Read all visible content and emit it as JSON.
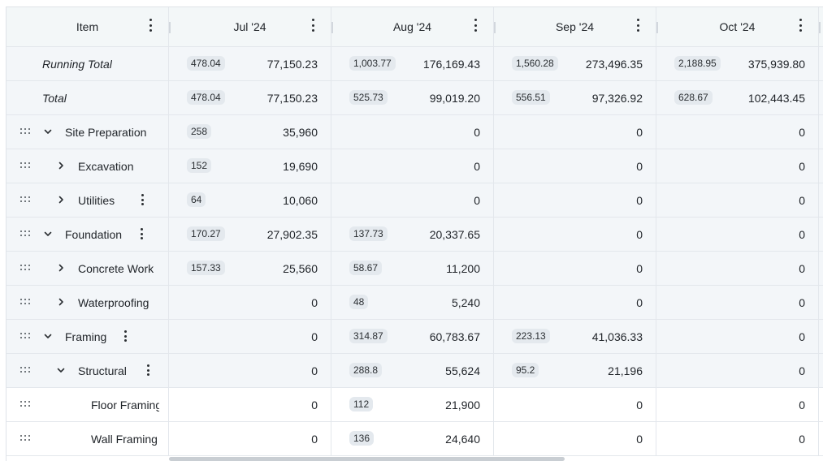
{
  "header": {
    "item_label": "Item",
    "months": [
      "Jul '24",
      "Aug '24",
      "Sep '24",
      "Oct '24"
    ]
  },
  "rows": [
    {
      "label": "Running Total",
      "kind": "summary",
      "level": 0,
      "expander": "none",
      "row_menu": false,
      "cells": [
        {
          "badge": "478.04",
          "amount": "77,150.23"
        },
        {
          "badge": "1,003.77",
          "amount": "176,169.43"
        },
        {
          "badge": "1,560.28",
          "amount": "273,496.35"
        },
        {
          "badge": "2,188.95",
          "amount": "375,939.80"
        }
      ]
    },
    {
      "label": "Total",
      "kind": "summary",
      "level": 0,
      "expander": "none",
      "row_menu": false,
      "cells": [
        {
          "badge": "478.04",
          "amount": "77,150.23"
        },
        {
          "badge": "525.73",
          "amount": "99,019.20"
        },
        {
          "badge": "556.51",
          "amount": "97,326.92"
        },
        {
          "badge": "628.67",
          "amount": "102,443.45"
        }
      ]
    },
    {
      "label": "Site Preparation",
      "kind": "group",
      "level": 0,
      "expander": "expanded",
      "row_menu": false,
      "cells": [
        {
          "badge": "258",
          "amount": "35,960"
        },
        {
          "badge": "",
          "amount": "0"
        },
        {
          "badge": "",
          "amount": "0"
        },
        {
          "badge": "",
          "amount": "0"
        }
      ]
    },
    {
      "label": "Excavation",
      "kind": "group",
      "level": 1,
      "expander": "collapsed",
      "row_menu": false,
      "cells": [
        {
          "badge": "152",
          "amount": "19,690"
        },
        {
          "badge": "",
          "amount": "0"
        },
        {
          "badge": "",
          "amount": "0"
        },
        {
          "badge": "",
          "amount": "0"
        }
      ]
    },
    {
      "label": "Utilities",
      "kind": "group",
      "level": 1,
      "expander": "collapsed",
      "row_menu": true,
      "cells": [
        {
          "badge": "64",
          "amount": "10,060"
        },
        {
          "badge": "",
          "amount": "0"
        },
        {
          "badge": "",
          "amount": "0"
        },
        {
          "badge": "",
          "amount": "0"
        }
      ]
    },
    {
      "label": "Foundation",
      "kind": "group",
      "level": 0,
      "expander": "expanded",
      "row_menu": true,
      "cells": [
        {
          "badge": "170.27",
          "amount": "27,902.35"
        },
        {
          "badge": "137.73",
          "amount": "20,337.65"
        },
        {
          "badge": "",
          "amount": "0"
        },
        {
          "badge": "",
          "amount": "0"
        }
      ]
    },
    {
      "label": "Concrete Work",
      "kind": "group",
      "level": 1,
      "expander": "collapsed",
      "row_menu": false,
      "cells": [
        {
          "badge": "157.33",
          "amount": "25,560"
        },
        {
          "badge": "58.67",
          "amount": "11,200"
        },
        {
          "badge": "",
          "amount": "0"
        },
        {
          "badge": "",
          "amount": "0"
        }
      ]
    },
    {
      "label": "Waterproofing",
      "kind": "group",
      "level": 1,
      "expander": "collapsed",
      "row_menu": false,
      "cells": [
        {
          "badge": "",
          "amount": "0"
        },
        {
          "badge": "48",
          "amount": "5,240"
        },
        {
          "badge": "",
          "amount": "0"
        },
        {
          "badge": "",
          "amount": "0"
        }
      ]
    },
    {
      "label": "Framing",
      "kind": "group",
      "level": 0,
      "expander": "expanded",
      "row_menu": true,
      "cells": [
        {
          "badge": "",
          "amount": "0"
        },
        {
          "badge": "314.87",
          "amount": "60,783.67"
        },
        {
          "badge": "223.13",
          "amount": "41,036.33"
        },
        {
          "badge": "",
          "amount": "0"
        }
      ]
    },
    {
      "label": "Structural",
      "kind": "group",
      "level": 1,
      "expander": "expanded",
      "row_menu": true,
      "cells": [
        {
          "badge": "",
          "amount": "0"
        },
        {
          "badge": "288.8",
          "amount": "55,624"
        },
        {
          "badge": "95.2",
          "amount": "21,196"
        },
        {
          "badge": "",
          "amount": "0"
        }
      ]
    },
    {
      "label": "Floor Framing",
      "kind": "leaf",
      "level": 2,
      "expander": "none",
      "row_menu": false,
      "cells": [
        {
          "badge": "",
          "amount": "0"
        },
        {
          "badge": "112",
          "amount": "21,900"
        },
        {
          "badge": "",
          "amount": "0"
        },
        {
          "badge": "",
          "amount": "0"
        }
      ]
    },
    {
      "label": "Wall Framing",
      "kind": "leaf",
      "level": 2,
      "expander": "none",
      "row_menu": false,
      "cells": [
        {
          "badge": "",
          "amount": "0"
        },
        {
          "badge": "136",
          "amount": "24,640"
        },
        {
          "badge": "",
          "amount": "0"
        },
        {
          "badge": "",
          "amount": "0"
        }
      ]
    }
  ]
}
